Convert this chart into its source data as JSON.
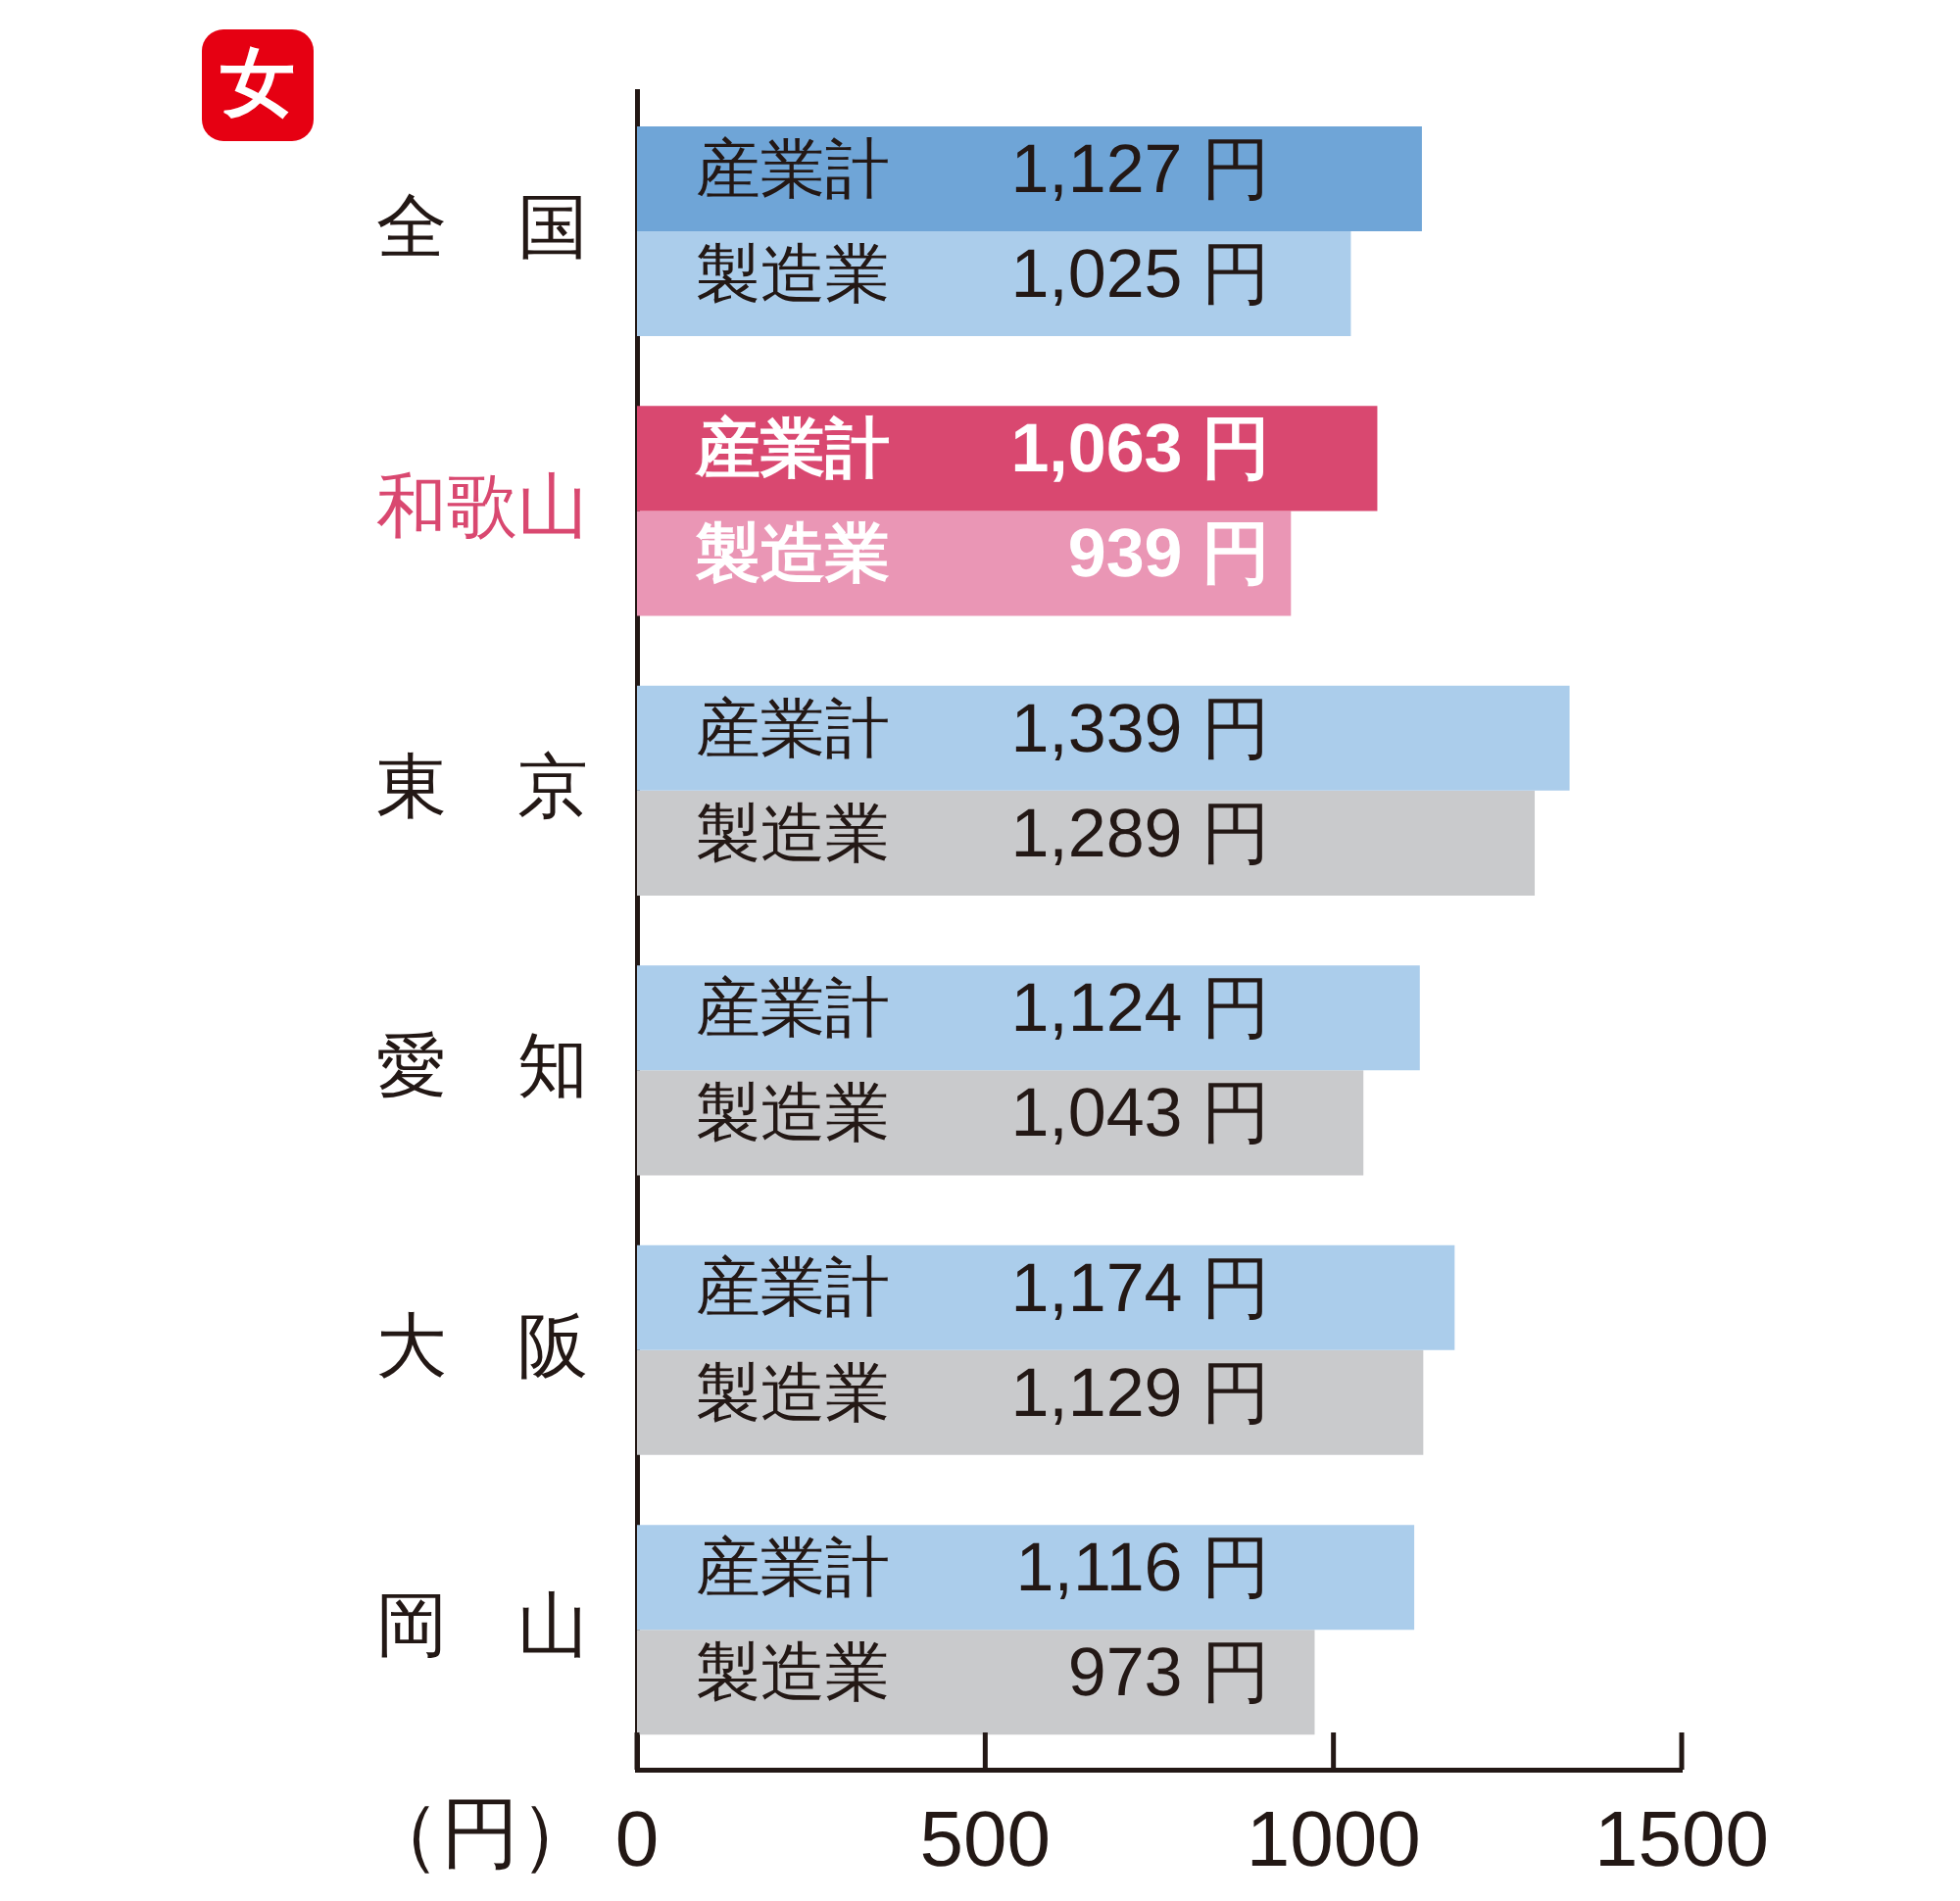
{
  "chart_data": {
    "type": "bar",
    "orientation": "horizontal",
    "title": "女",
    "xlabel": "（円）",
    "categories": [
      "全　国",
      "和歌山",
      "東　京",
      "愛　知",
      "大　阪",
      "岡　山"
    ],
    "series": [
      {
        "name": "産業計",
        "colors": [
          "#6fa5d7",
          "#d94870",
          "#abcdeb",
          "#abcdeb",
          "#abcdeb",
          "#abcdeb"
        ],
        "values": [
          1127,
          1063,
          1339,
          1124,
          1174,
          1116
        ],
        "value_labels": [
          "1,127 円",
          "1,063 円",
          "1,339 円",
          "1,124 円",
          "1,174 円",
          "1,116 円"
        ]
      },
      {
        "name": "製造業",
        "colors": [
          "#abcdeb",
          "#ea96b5",
          "#c9cacc",
          "#c9cacc",
          "#c9cacc",
          "#c9cacc"
        ],
        "values": [
          1025,
          939,
          1289,
          1043,
          1129,
          973
        ],
        "value_labels": [
          "1,025 円",
          "939 円",
          "1,289 円",
          "1,043 円",
          "1,129 円",
          "973 円"
        ]
      }
    ],
    "xlim": [
      0,
      1500
    ],
    "xticks": [
      0,
      500,
      1000,
      1500
    ]
  }
}
